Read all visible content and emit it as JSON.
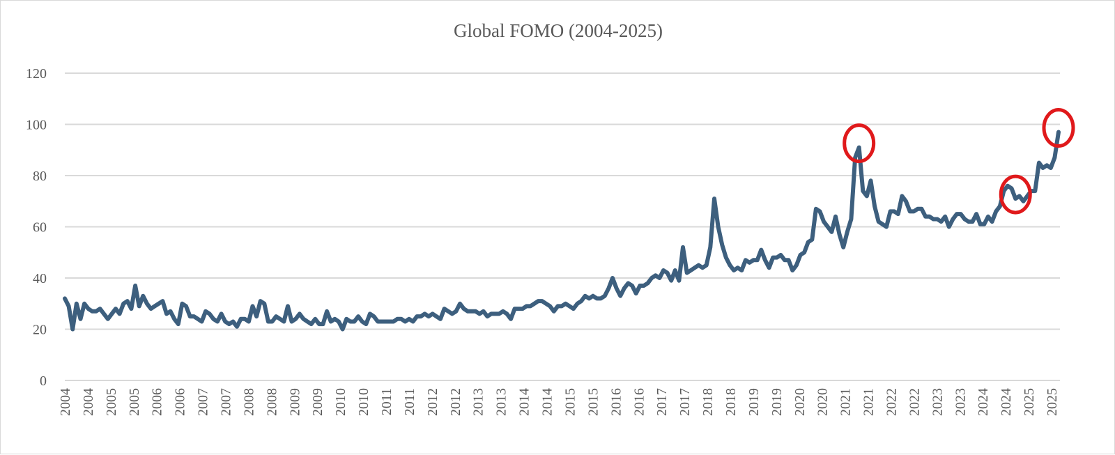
{
  "chart_data": {
    "type": "line",
    "title": "Global FOMO (2004-2025)",
    "xlabel": "",
    "ylabel": "",
    "ylim": [
      0,
      120
    ],
    "yticks": [
      "0",
      "20",
      "40",
      "60",
      "80",
      "100",
      "120"
    ],
    "xtick_labels": [
      "2004",
      "2004",
      "2005",
      "2005",
      "2006",
      "2006",
      "2007",
      "2007",
      "2008",
      "2008",
      "2009",
      "2009",
      "2010",
      "2010",
      "2011",
      "2011",
      "2012",
      "2012",
      "2013",
      "2013",
      "2014",
      "2014",
      "2015",
      "2015",
      "2016",
      "2016",
      "2017",
      "2017",
      "2018",
      "2018",
      "2019",
      "2019",
      "2020",
      "2020",
      "2021",
      "2021",
      "2022",
      "2022",
      "2023",
      "2023",
      "2024",
      "2024",
      "2025",
      "2025"
    ],
    "grid": true,
    "legend": "none",
    "line_color": "#3d5f7e",
    "highlight_color": "#e0191b",
    "series": [
      {
        "values": [
          32,
          29,
          20,
          30,
          24,
          30,
          28,
          27,
          27,
          28,
          26,
          24,
          26,
          28,
          26,
          30,
          31,
          28,
          37,
          29,
          33,
          30,
          28,
          29,
          30,
          31,
          26,
          27,
          24,
          22,
          30,
          29,
          25,
          25,
          24,
          23,
          27,
          26,
          24,
          23,
          26,
          23,
          22,
          23,
          21,
          24,
          24,
          23,
          29,
          25,
          31,
          30,
          23,
          23,
          25,
          24,
          23,
          29,
          23,
          24,
          26,
          24,
          23,
          22,
          24,
          22,
          22,
          27,
          23,
          24,
          23,
          20,
          24,
          23,
          23,
          25,
          23,
          22,
          26,
          25,
          23,
          23,
          23,
          23,
          23,
          24,
          24,
          23,
          24,
          23,
          25,
          25,
          26,
          25,
          26,
          25,
          24,
          28,
          27,
          26,
          27,
          30,
          28,
          27,
          27,
          27,
          26,
          27,
          25,
          26,
          26,
          26,
          27,
          26,
          24,
          28,
          28,
          28,
          29,
          29,
          30,
          31,
          31,
          30,
          29,
          27,
          29,
          29,
          30,
          29,
          28,
          30,
          31,
          33,
          32,
          33,
          32,
          32,
          33,
          36,
          40,
          36,
          33,
          36,
          38,
          37,
          34,
          37,
          37,
          38,
          40,
          41,
          40,
          43,
          42,
          39,
          43,
          39,
          52,
          42,
          43,
          44,
          45,
          44,
          45,
          52,
          71,
          60,
          53,
          48,
          45,
          43,
          44,
          43,
          47,
          46,
          47,
          47,
          51,
          47,
          44,
          48,
          48,
          49,
          47,
          47,
          43,
          45,
          49,
          50,
          54,
          55,
          67,
          66,
          62,
          60,
          58,
          64,
          57,
          52,
          58,
          63,
          87,
          91,
          74,
          72,
          78,
          68,
          62,
          61,
          60,
          66,
          66,
          65,
          72,
          70,
          66,
          66,
          67,
          67,
          64,
          64,
          63,
          63,
          62,
          64,
          60,
          63,
          65,
          65,
          63,
          62,
          62,
          65,
          61,
          61,
          64,
          62,
          66,
          68,
          74,
          76,
          75,
          71,
          72,
          70,
          72,
          74,
          74,
          85,
          83,
          84,
          83,
          87,
          97
        ]
      }
    ],
    "highlighted_peaks": [
      {
        "year": "2018",
        "value": 71
      },
      {
        "year": "2021",
        "value": 91
      },
      {
        "year": "2025",
        "value": 97
      }
    ]
  }
}
